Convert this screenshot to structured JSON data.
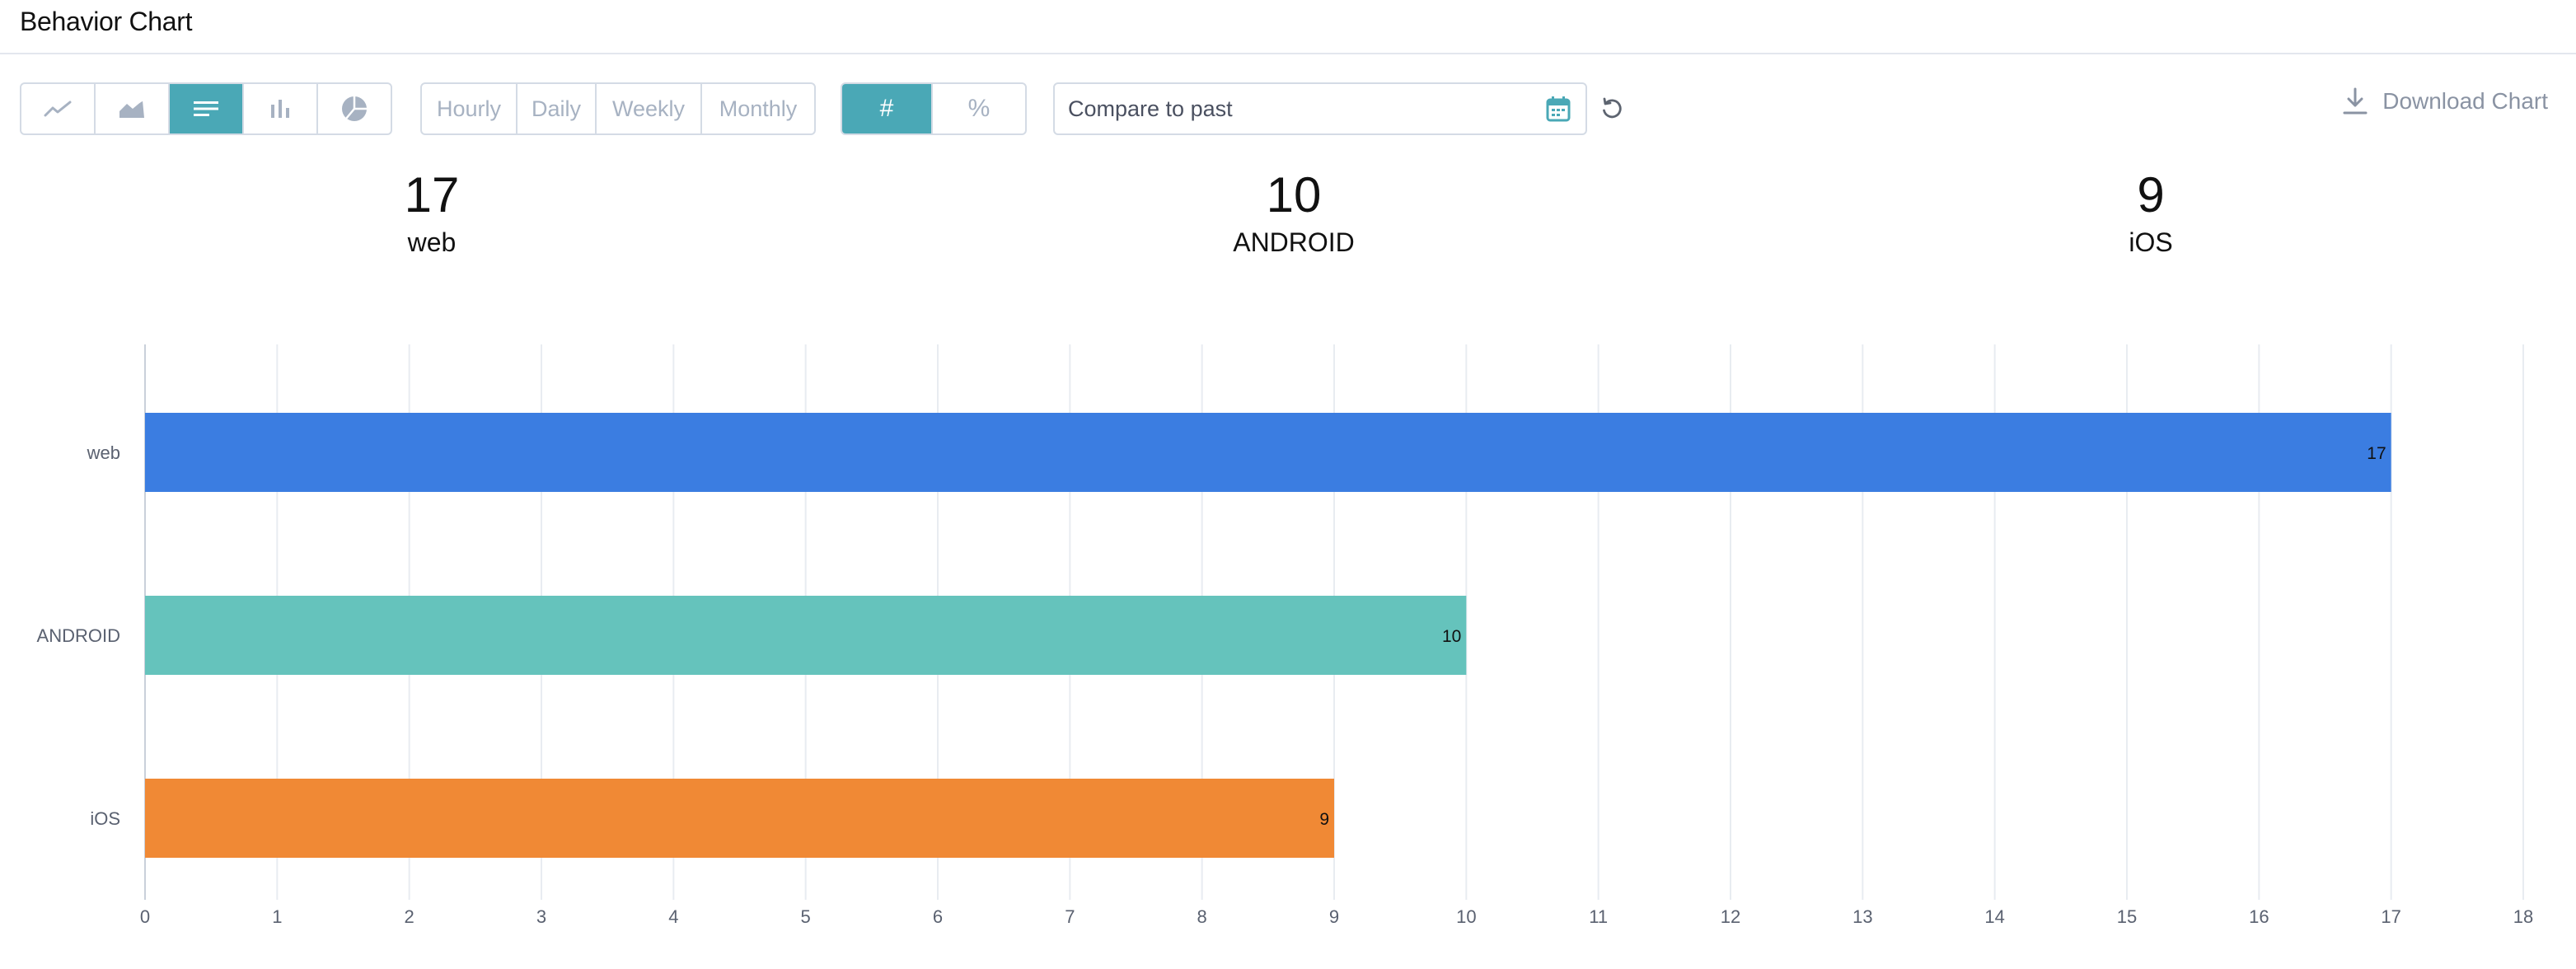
{
  "header": {
    "title": "Behavior Chart"
  },
  "toolbar": {
    "chart_types": [
      {
        "icon": "line-chart-icon",
        "active": false
      },
      {
        "icon": "area-chart-icon",
        "active": false
      },
      {
        "icon": "horizontal-bar-chart-icon",
        "active": true
      },
      {
        "icon": "vertical-bar-chart-icon",
        "active": false
      },
      {
        "icon": "pie-chart-icon",
        "active": false
      }
    ],
    "intervals": [
      "Hourly",
      "Daily",
      "Weekly",
      "Monthly"
    ],
    "modes": [
      {
        "label": "#",
        "active": true
      },
      {
        "label": "%",
        "active": false
      }
    ],
    "compare_placeholder": "Compare to past",
    "download_label": "Download Chart"
  },
  "totals": [
    {
      "value": "17",
      "label": "web"
    },
    {
      "value": "10",
      "label": "ANDROID"
    },
    {
      "value": "9",
      "label": "iOS"
    }
  ],
  "colors": {
    "accent": "#4aa8b6",
    "web": "#3b7de1",
    "android": "#65c3bc",
    "ios": "#f08935"
  },
  "chart_data": {
    "type": "bar",
    "orientation": "horizontal",
    "categories": [
      "web",
      "ANDROID",
      "iOS"
    ],
    "values": [
      17,
      10,
      9
    ],
    "colors": [
      "#3b7de1",
      "#65c3bc",
      "#f08935"
    ],
    "data_labels": [
      "17",
      "10",
      "9"
    ],
    "xlim": [
      0,
      18
    ],
    "xticks": [
      "0",
      "1",
      "2",
      "3",
      "4",
      "5",
      "6",
      "7",
      "8",
      "9",
      "10",
      "11",
      "12",
      "13",
      "14",
      "15",
      "16",
      "17",
      "18"
    ],
    "grid": true
  }
}
